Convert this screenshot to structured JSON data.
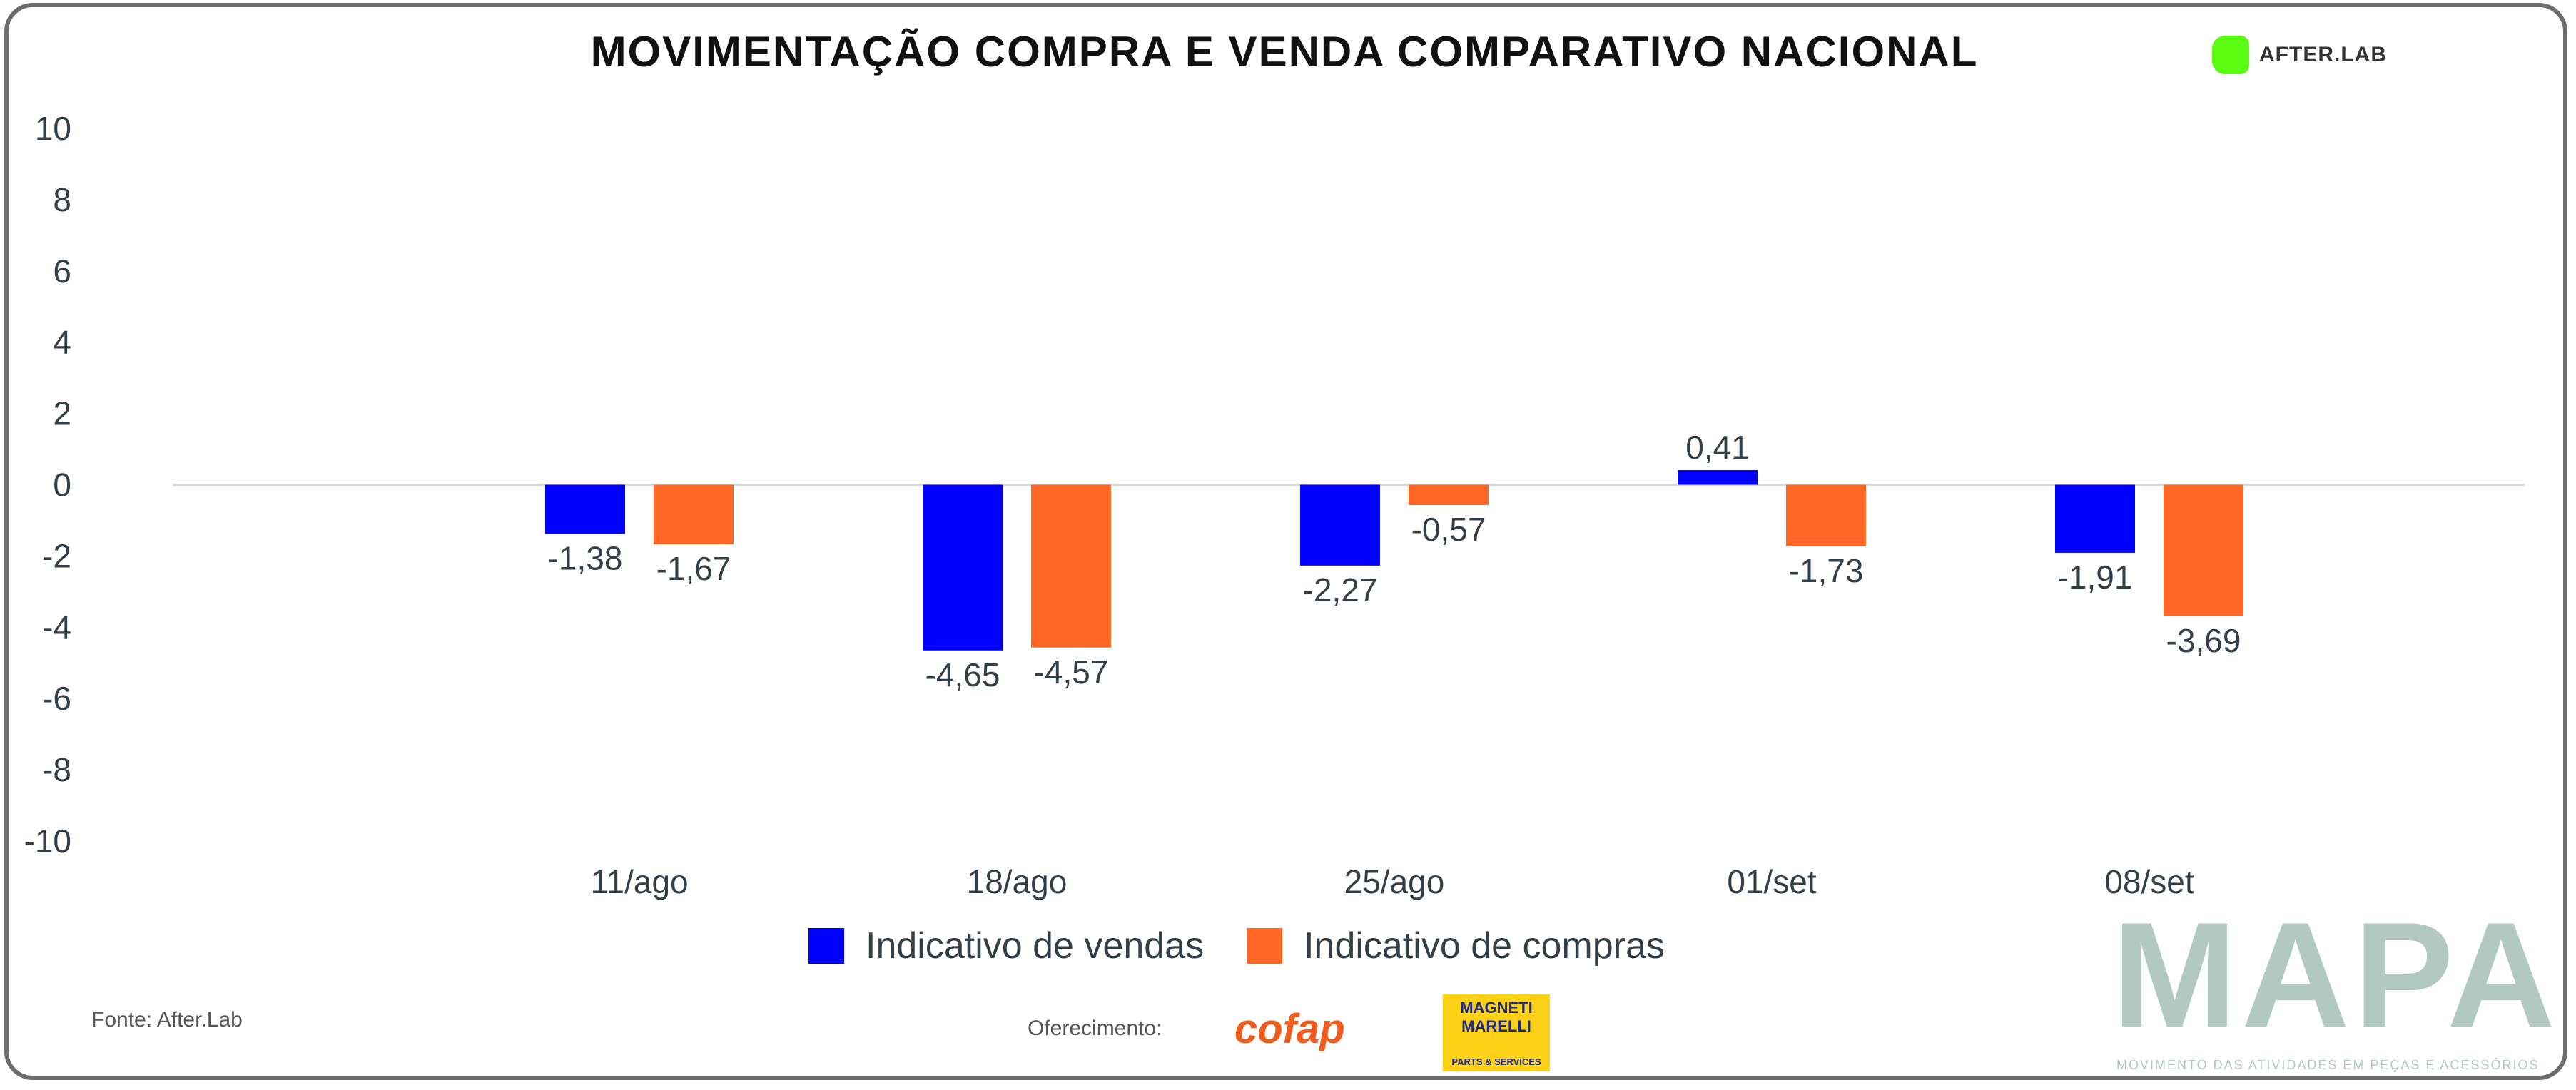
{
  "chart_data": {
    "type": "bar",
    "title": "MOVIMENTAÇÃO COMPRA E VENDA COMPARATIVO NACIONAL",
    "categories": [
      "11/ago",
      "18/ago",
      "25/ago",
      "01/set",
      "08/set"
    ],
    "series": [
      {
        "name": "Indicativo de vendas",
        "color": "#0000ff",
        "values": [
          -1.38,
          -4.65,
          -2.27,
          0.41,
          -1.91
        ],
        "labels": [
          "-1,38",
          "-4,65",
          "-2,27",
          "0,41",
          "-1,91"
        ]
      },
      {
        "name": "Indicativo de compras",
        "color": "#ff6726",
        "values": [
          -1.67,
          -4.57,
          -0.57,
          -1.73,
          -3.69
        ],
        "labels": [
          "-1,67",
          "-4,57",
          "-0,57",
          "-1,73",
          "-3,69"
        ]
      }
    ],
    "ylim": [
      -10,
      10
    ],
    "yticks": [
      10,
      8,
      6,
      4,
      2,
      0,
      -2,
      -4,
      -6,
      -8,
      -10
    ],
    "grid": false,
    "legend": "bottom"
  },
  "branding": {
    "afterlab": "AFTER.LAB",
    "source": "Fonte: After.Lab",
    "offer": "Oferecimento:",
    "cofap": "cofap",
    "magneti": "MAGNETI MARELLI",
    "magneti_sub": "PARTS & SERVICES",
    "mapa": "MAPA",
    "mapa_sub": "MOVIMENTO DAS ATIVIDADES EM PEÇAS E ACESSÓRIOS",
    "afterlab_color": "#5cfc12",
    "mapa_color": "#b1c9c1"
  }
}
